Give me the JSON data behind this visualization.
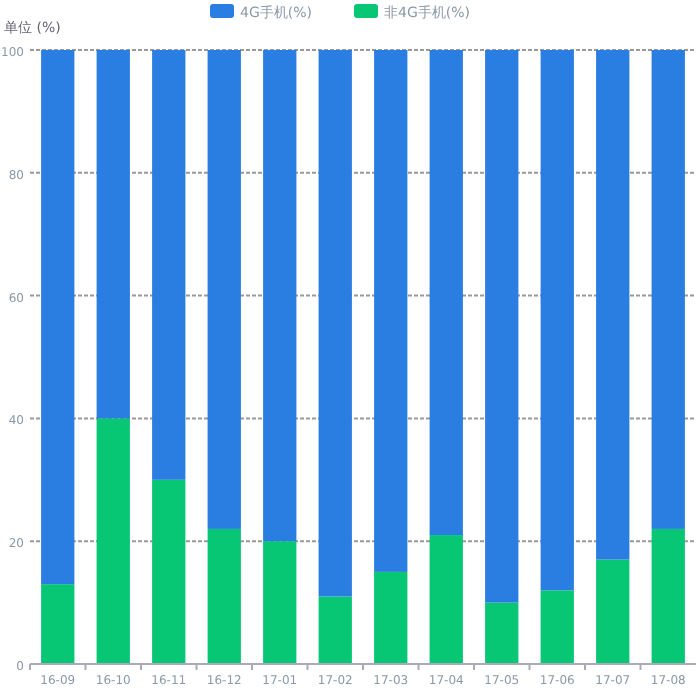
{
  "chart_data": {
    "type": "bar",
    "stacked": true,
    "ylabel": "单位 (%)",
    "categories": [
      "16-09",
      "16-10",
      "16-11",
      "16-12",
      "17-01",
      "17-02",
      "17-03",
      "17-04",
      "17-05",
      "17-06",
      "17-07",
      "17-08"
    ],
    "series": [
      {
        "name": "非4G手机(%)",
        "color": "#07c775",
        "values": [
          13,
          40,
          30,
          22,
          20,
          11,
          15,
          21,
          10,
          12,
          17,
          22
        ]
      },
      {
        "name": "4G手机(%)",
        "color": "#2a7de1",
        "values": [
          87,
          60,
          70,
          78,
          80,
          89,
          85,
          79,
          90,
          88,
          83,
          78
        ]
      }
    ],
    "ylim": [
      0,
      100
    ],
    "yticks": [
      0,
      20,
      40,
      60,
      80,
      100
    ],
    "grid": "y",
    "legend": "top"
  }
}
